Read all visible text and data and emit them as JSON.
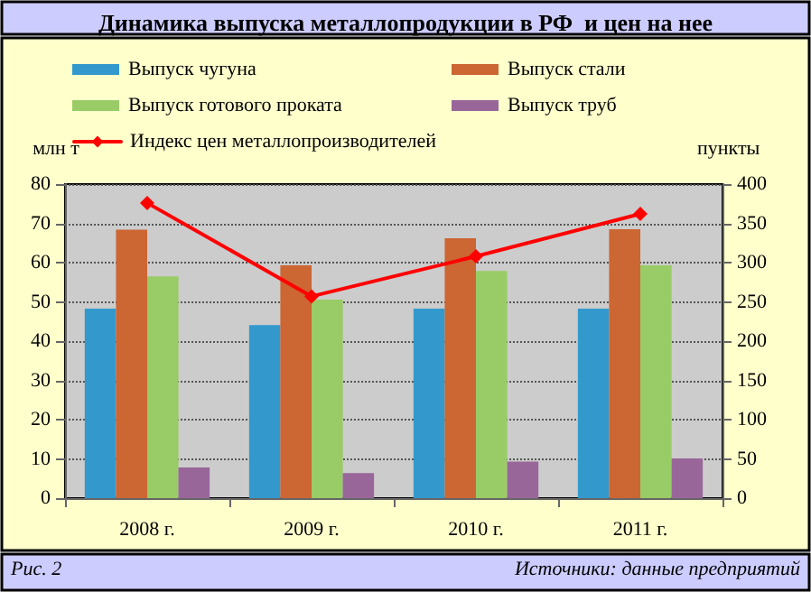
{
  "chart_data": {
    "type": "bar",
    "title": "Динамика выпуска металлопродукции в РФ  и цен на нее",
    "ylabel": "млн т",
    "y2label": "пункты",
    "categories": [
      "2008 г.",
      "2009 г.",
      "2010 г.",
      "2011 г."
    ],
    "series": [
      {
        "name": "Выпуск чугуна",
        "color": "#3399cc",
        "values": [
          48.3,
          44.1,
          48.3,
          48.3
        ]
      },
      {
        "name": "Выпуск стали",
        "color": "#cc6633",
        "values": [
          68.4,
          59.3,
          66.2,
          68.5
        ]
      },
      {
        "name": "Выпуск готового проката",
        "color": "#99cc66",
        "values": [
          56.5,
          50.6,
          57.9,
          59.3
        ]
      },
      {
        "name": "Выпуск труб",
        "color": "#996699",
        "values": [
          7.8,
          6.4,
          9.3,
          10.1
        ]
      },
      {
        "name": "Индекс цен металлопроизводителей",
        "type": "line",
        "axis": "y2",
        "color": "#ff0000",
        "values": [
          376,
          257,
          308,
          362
        ]
      }
    ],
    "ylim": [
      0,
      80
    ],
    "yticks": [
      0,
      10,
      20,
      30,
      40,
      50,
      60,
      70,
      80
    ],
    "y2lim": [
      0,
      400
    ],
    "y2ticks": [
      0,
      50,
      100,
      150,
      200,
      250,
      300,
      350,
      400
    ],
    "grid": "y",
    "legend": "top",
    "marker": "diamond",
    "line_style": "solid",
    "annotations": [
      "Рис. 2",
      "Источники: данные предприятий"
    ]
  }
}
